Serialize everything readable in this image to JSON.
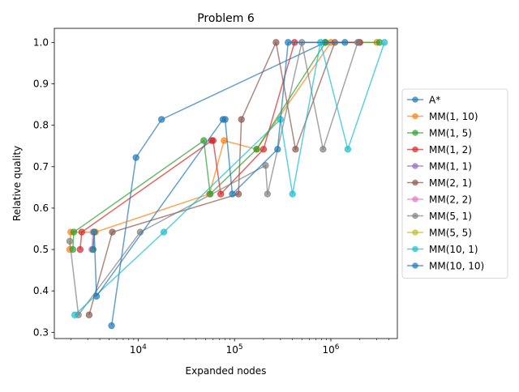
{
  "chart_data": {
    "type": "line",
    "title": "Problem 6",
    "xlabel": "Expanded nodes",
    "ylabel": "Relative quality",
    "xscale": "log",
    "xlim": [
      1350,
      4900000
    ],
    "ylim": [
      0.285,
      1.034
    ],
    "xticks": [
      {
        "value": 10000,
        "base": "10",
        "exp": "4"
      },
      {
        "value": 100000,
        "base": "10",
        "exp": "5"
      },
      {
        "value": 1000000,
        "base": "10",
        "exp": "6"
      }
    ],
    "yticks": [
      {
        "value": 0.3,
        "label": "0.3"
      },
      {
        "value": 0.4,
        "label": "0.4"
      },
      {
        "value": 0.5,
        "label": "0.5"
      },
      {
        "value": 0.6,
        "label": "0.6"
      },
      {
        "value": 0.7,
        "label": "0.7"
      },
      {
        "value": 0.8,
        "label": "0.8"
      },
      {
        "value": 0.9,
        "label": "0.9"
      },
      {
        "value": 1.0,
        "label": "1.0"
      }
    ],
    "grid": false,
    "legend_position": "right",
    "series": [
      {
        "name": "A*",
        "color": "#1f77b4",
        "points": [
          [
            5300,
            0.316
          ],
          [
            9500,
            0.722
          ],
          [
            17500,
            0.814
          ],
          [
            870000,
            1.0
          ]
        ]
      },
      {
        "name": "MM(1, 10)",
        "color": "#ff7f0e",
        "points": [
          [
            1950,
            0.5
          ],
          [
            2000,
            0.542
          ],
          [
            3600,
            0.542
          ],
          [
            55000,
            0.634
          ],
          [
            78000,
            0.763
          ],
          [
            170000,
            0.742
          ],
          [
            1000000,
            1.0
          ],
          [
            3000000,
            1.0
          ]
        ]
      },
      {
        "name": "MM(1, 5)",
        "color": "#2ca02c",
        "points": [
          [
            2100,
            0.5
          ],
          [
            2150,
            0.542
          ],
          [
            48000,
            0.763
          ],
          [
            56000,
            0.634
          ],
          [
            170000,
            0.742
          ],
          [
            880000,
            1.0
          ],
          [
            3200000,
            1.0
          ]
        ]
      },
      {
        "name": "MM(1, 2)",
        "color": "#d62728",
        "points": [
          [
            2500,
            0.5
          ],
          [
            2600,
            0.542
          ],
          [
            58000,
            0.763
          ],
          [
            60000,
            0.763
          ],
          [
            72000,
            0.634
          ],
          [
            200000,
            0.742
          ],
          [
            420000,
            1.0
          ],
          [
            2000000,
            1.0
          ]
        ]
      },
      {
        "name": "MM(1, 1)",
        "color": "#9467bd",
        "points": [
          [
            3400,
            0.5
          ],
          [
            3500,
            0.542
          ]
        ]
      },
      {
        "name": "MM(2, 1)",
        "color": "#8c564b",
        "points": [
          [
            3100,
            0.342
          ],
          [
            5400,
            0.542
          ],
          [
            110000,
            0.634
          ],
          [
            118000,
            0.814
          ],
          [
            270000,
            1.0
          ],
          [
            430000,
            0.742
          ],
          [
            1100000,
            1.0
          ],
          [
            1950000,
            1.0
          ]
        ]
      },
      {
        "name": "MM(2, 2)",
        "color": "#e377c2",
        "points": [
          [
            3300,
            0.5
          ],
          [
            3400,
            0.542
          ]
        ]
      },
      {
        "name": "MM(5, 1)",
        "color": "#7f7f7f",
        "points": [
          [
            1950,
            0.52
          ],
          [
            2400,
            0.342
          ],
          [
            10500,
            0.542
          ],
          [
            210000,
            0.703
          ],
          [
            220000,
            0.634
          ],
          [
            500000,
            1.0
          ],
          [
            830000,
            0.742
          ],
          [
            1900000,
            1.0
          ]
        ]
      },
      {
        "name": "MM(5, 5)",
        "color": "#bcbd22",
        "points": [
          [
            3400,
            0.5
          ],
          [
            3500,
            0.542
          ]
        ]
      },
      {
        "name": "MM(10, 1)",
        "color": "#17becf",
        "points": [
          [
            2200,
            0.342
          ],
          [
            18500,
            0.542
          ],
          [
            300000,
            0.814
          ],
          [
            400000,
            0.634
          ],
          [
            780000,
            1.0
          ],
          [
            1500000,
            0.742
          ],
          [
            3600000,
            1.0
          ]
        ]
      },
      {
        "name": "MM(10, 10)",
        "color": "#1f77b4",
        "points": [
          [
            3400,
            0.5
          ],
          [
            3500,
            0.542
          ],
          [
            3700,
            0.387
          ],
          [
            76000,
            0.814
          ],
          [
            80000,
            0.814
          ],
          [
            95000,
            0.634
          ],
          [
            280000,
            0.742
          ],
          [
            360000,
            1.0
          ],
          [
            1400000,
            1.0
          ]
        ]
      }
    ]
  }
}
